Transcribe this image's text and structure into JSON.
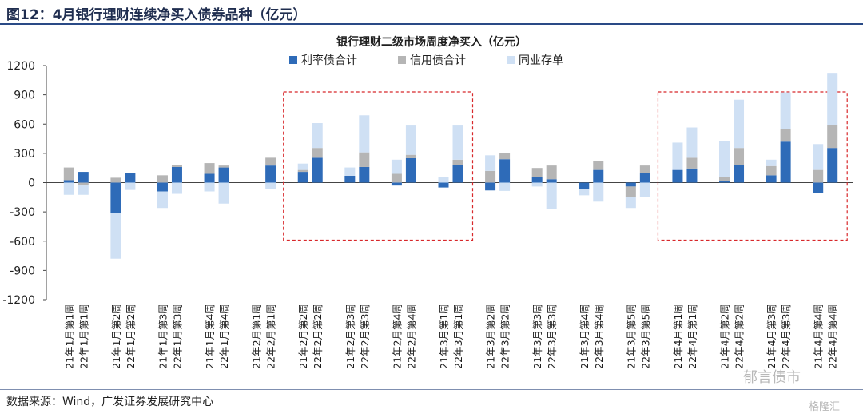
{
  "figure_title": "图12：4月银行理财连续净买入债券品种（亿元）",
  "source": "数据来源：Wind，广发证券发展研究中心",
  "watermark": {
    "left_text": "郁言债市",
    "right_text": "格隆汇"
  },
  "colors": {
    "rate_bond": "#2e6bb8",
    "credit_bond": "#b5b5b5",
    "ncd": "#cfe0f4",
    "highlight_box": "#d8282b",
    "axis_text": "#1f1f1f"
  },
  "chart_data": {
    "type": "bar",
    "stacked": true,
    "title": "银行理财二级市场周度净买入（亿元）",
    "ylim": [
      -1200,
      1200
    ],
    "yticks": [
      1200,
      900,
      600,
      300,
      0,
      -300,
      -600,
      -900,
      -1200
    ],
    "legend_position": "top-center",
    "categories": [
      "21年1月第1周",
      "22年1月第1周",
      "21年1月第2周",
      "22年1月第2周",
      "21年1月第3周",
      "22年1月第3周",
      "21年1月第4周",
      "22年1月第4周",
      "21年2月第1周",
      "22年2月第1周",
      "21年2月第2周",
      "22年2月第2周",
      "21年2月第3周",
      "22年2月第3周",
      "21年2月第4周",
      "22年2月第4周",
      "21年3月第1周",
      "22年3月第1周",
      "21年3月第2周",
      "22年3月第2周",
      "21年3月第3周",
      "22年3月第3周",
      "21年3月第4周",
      "22年3月第4周",
      "21年3月第5周",
      "22年3月第5周",
      "21年4月第1周",
      "22年4月第1周",
      "21年4月第2周",
      "22年4月第2周",
      "21年4月第3周",
      "22年4月第3周",
      "21年4月第4周",
      "22年4月第4周"
    ],
    "series": [
      {
        "name": "利率债合计",
        "color": "#2e6bb8",
        "values": [
          25,
          110,
          -310,
          95,
          -90,
          160,
          90,
          155,
          0,
          175,
          110,
          255,
          70,
          160,
          -30,
          250,
          -50,
          180,
          -80,
          240,
          60,
          35,
          -70,
          130,
          -40,
          95,
          130,
          145,
          15,
          180,
          75,
          420,
          -110,
          355
        ]
      },
      {
        "name": "信用债合计",
        "color": "#b5b5b5",
        "values": [
          130,
          -30,
          50,
          0,
          75,
          20,
          110,
          20,
          0,
          80,
          20,
          100,
          0,
          150,
          90,
          35,
          0,
          55,
          120,
          60,
          90,
          140,
          0,
          95,
          -110,
          80,
          0,
          110,
          40,
          175,
          95,
          130,
          130,
          235
        ]
      },
      {
        "name": "同业存单",
        "color": "#cfe0f4",
        "values": [
          -125,
          -95,
          -470,
          -75,
          -170,
          -115,
          -90,
          -215,
          0,
          -65,
          65,
          255,
          85,
          380,
          145,
          300,
          60,
          350,
          160,
          -85,
          -40,
          -270,
          -60,
          -195,
          -110,
          -145,
          280,
          310,
          375,
          495,
          65,
          375,
          265,
          535
        ]
      }
    ],
    "highlight_groups": [
      {
        "from": "21年2月第2周",
        "to": "22年3月第1周"
      },
      {
        "from": "21年4月第1周",
        "to": "22年4月第4周"
      }
    ]
  }
}
